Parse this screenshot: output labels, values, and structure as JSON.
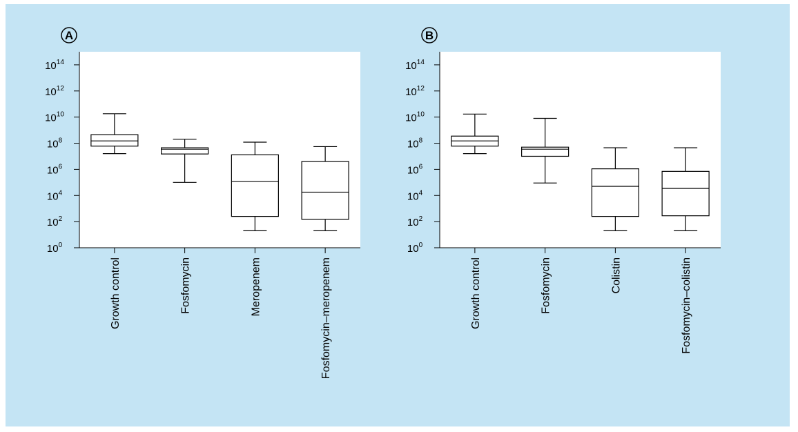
{
  "figure": {
    "background": "#c4e4f4",
    "plot_background": "#ffffff",
    "line_color": "#000000"
  },
  "chart_data": [
    {
      "type": "box",
      "panel_label": "A",
      "ylabel": "",
      "yscale": "log10",
      "ylim": [
        1,
        1000000000000000.0
      ],
      "yticks": [
        {
          "value": 1,
          "base": "10",
          "exp": "0"
        },
        {
          "value": 100,
          "base": "10",
          "exp": "2"
        },
        {
          "value": 10000,
          "base": "10",
          "exp": "4"
        },
        {
          "value": 1000000,
          "base": "10",
          "exp": "6"
        },
        {
          "value": 100000000,
          "base": "10",
          "exp": "8"
        },
        {
          "value": 10000000000,
          "base": "10",
          "exp": "10"
        },
        {
          "value": 1000000000000,
          "base": "10",
          "exp": "12"
        },
        {
          "value": 100000000000000,
          "base": "10",
          "exp": "14"
        }
      ],
      "categories": [
        "Growth control",
        "Fosfomycin",
        "Meropenem",
        "Fosfomycin–meropenem"
      ],
      "boxes": [
        {
          "min": 16000000.0,
          "q1": 60000000.0,
          "median": 150000000.0,
          "q3": 450000000.0,
          "max": 18000000000.0
        },
        {
          "min": 100000.0,
          "q1": 15000000.0,
          "median": 35000000.0,
          "q3": 45000000.0,
          "max": 200000000.0
        },
        {
          "min": 20,
          "q1": 250,
          "median": 120000.0,
          "q3": 13000000.0,
          "max": 120000000.0
        },
        {
          "min": 20,
          "q1": 150,
          "median": 18000.0,
          "q3": 4000000.0,
          "max": 55000000.0
        }
      ]
    },
    {
      "type": "box",
      "panel_label": "B",
      "ylabel": "",
      "yscale": "log10",
      "ylim": [
        1,
        1000000000000000.0
      ],
      "yticks": [
        {
          "value": 1,
          "base": "10",
          "exp": "0"
        },
        {
          "value": 100,
          "base": "10",
          "exp": "2"
        },
        {
          "value": 10000,
          "base": "10",
          "exp": "4"
        },
        {
          "value": 1000000,
          "base": "10",
          "exp": "6"
        },
        {
          "value": 100000000,
          "base": "10",
          "exp": "8"
        },
        {
          "value": 10000000000,
          "base": "10",
          "exp": "10"
        },
        {
          "value": 1000000000000,
          "base": "10",
          "exp": "12"
        },
        {
          "value": 100000000000000,
          "base": "10",
          "exp": "14"
        }
      ],
      "categories": [
        "Growth control",
        "Fosfomycin",
        "Colistin",
        "Fosfomycin–colistin"
      ],
      "boxes": [
        {
          "min": 16000000.0,
          "q1": 60000000.0,
          "median": 150000000.0,
          "q3": 350000000.0,
          "max": 17000000000.0
        },
        {
          "min": 90000.0,
          "q1": 10000000.0,
          "median": 35000000.0,
          "q3": 50000000.0,
          "max": 8000000000.0
        },
        {
          "min": 20,
          "q1": 250,
          "median": 50000.0,
          "q3": 1100000.0,
          "max": 45000000.0
        },
        {
          "min": 20,
          "q1": 280,
          "median": 35000.0,
          "q3": 700000.0,
          "max": 45000000.0
        }
      ]
    }
  ]
}
